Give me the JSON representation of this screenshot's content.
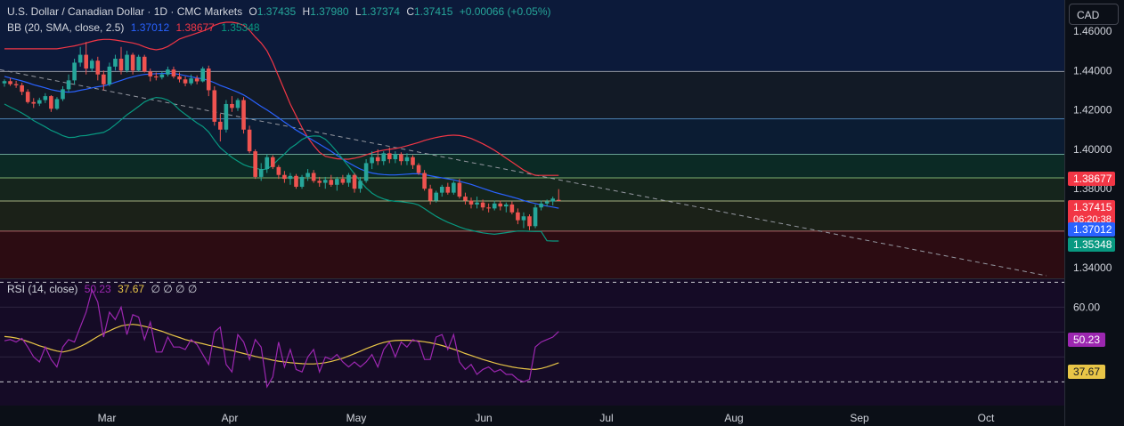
{
  "header": {
    "symbol": "U.S. Dollar / Canadian Dollar · 1D · CMC Markets",
    "open_label": "O",
    "open": "1.37435",
    "high_label": "H",
    "high": "1.37980",
    "low_label": "L",
    "low": "1.37374",
    "close_label": "C",
    "close": "1.37415",
    "change": "+0.00066 (+0.05%)"
  },
  "bb_legend": {
    "label": "BB (20, SMA, close, 2.5)",
    "basis": "1.37012",
    "upper": "1.38677",
    "lower": "1.35348"
  },
  "rsi_legend": {
    "label": "RSI (14, close)",
    "rsi": "50.23",
    "ma": "37.67",
    "extras": "∅ ∅ ∅ ∅"
  },
  "currency_button": "CAD",
  "colors": {
    "background": "#0b0f17",
    "up": "#26a69a",
    "down": "#ef5350",
    "basis": "#2962ff",
    "upper": "#f23645",
    "lower": "#089981",
    "rsi": "#9c27b0",
    "rsi_ma": "#e8c547"
  },
  "chart_data": [
    {
      "type": "candlestick",
      "title": "U.S. Dollar / Canadian Dollar · 1D · CMC Markets",
      "x_tick_labels": [
        "Mar",
        "Apr",
        "May",
        "Jun",
        "Jul",
        "Aug",
        "Sep",
        "Oct"
      ],
      "y_tick_labels": [
        "1.46000",
        "1.44000",
        "1.42000",
        "1.40000",
        "1.38000",
        "1.34000"
      ],
      "ylim": [
        1.3345,
        1.4758
      ],
      "horizontal_levels": [
        1.4395,
        1.4155,
        1.3975,
        1.3855,
        1.3738,
        1.3585
      ],
      "zones": [
        {
          "from": 1.4395,
          "to": 1.4758,
          "color": "#0c1a3a"
        },
        {
          "from": 1.4155,
          "to": 1.4395,
          "color": "#121a26"
        },
        {
          "from": 1.3975,
          "to": 1.4155,
          "color": "#0b1c33"
        },
        {
          "from": 1.3855,
          "to": 1.3975,
          "color": "#0b2a25"
        },
        {
          "from": 1.3738,
          "to": 1.3855,
          "color": "#15251c"
        },
        {
          "from": 1.3585,
          "to": 1.3738,
          "color": "#1b2118"
        },
        {
          "from": 1.3345,
          "to": 1.3585,
          "color": "#2c0c12"
        }
      ],
      "trendline": {
        "start": [
          1.433,
          1.4404
        ],
        "end": [
          1.3345,
          1.3345
        ]
      },
      "price_labels": [
        {
          "text": "1.38677",
          "value": 1.38677,
          "color": "#f23645"
        },
        {
          "text": "1.37415",
          "value": 1.37415,
          "color": "#f23645",
          "sub": "06:20:38"
        },
        {
          "text": "1.37012",
          "value": 1.37012,
          "color": "#2962ff"
        },
        {
          "text": "1.35348",
          "value": 1.35348,
          "color": "#089981"
        }
      ],
      "candles": [
        [
          1.4335,
          1.4355,
          1.4318,
          1.4346
        ],
        [
          1.4346,
          1.4362,
          1.4322,
          1.4331
        ],
        [
          1.4331,
          1.4348,
          1.4312,
          1.4325
        ],
        [
          1.4325,
          1.4338,
          1.4275,
          1.4292
        ],
        [
          1.4292,
          1.4305,
          1.4232,
          1.424
        ],
        [
          1.424,
          1.426,
          1.421,
          1.4232
        ],
        [
          1.4232,
          1.4262,
          1.422,
          1.425
        ],
        [
          1.425,
          1.4285,
          1.4235,
          1.427
        ],
        [
          1.427,
          1.4275,
          1.419,
          1.4206
        ],
        [
          1.4206,
          1.4265,
          1.42,
          1.4255
        ],
        [
          1.4255,
          1.432,
          1.4245,
          1.4305
        ],
        [
          1.4305,
          1.438,
          1.429,
          1.435
        ],
        [
          1.435,
          1.446,
          1.433,
          1.444
        ],
        [
          1.444,
          1.452,
          1.442,
          1.448
        ],
        [
          1.448,
          1.4545,
          1.438,
          1.441
        ],
        [
          1.441,
          1.446,
          1.4395,
          1.445
        ],
        [
          1.445,
          1.447,
          1.435,
          1.438
        ],
        [
          1.438,
          1.44,
          1.43,
          1.433
        ],
        [
          1.433,
          1.444,
          1.432,
          1.442
        ],
        [
          1.442,
          1.448,
          1.44,
          1.446
        ],
        [
          1.446,
          1.452,
          1.438,
          1.44
        ],
        [
          1.44,
          1.45,
          1.439,
          1.448
        ],
        [
          1.448,
          1.449,
          1.438,
          1.44
        ],
        [
          1.44,
          1.448,
          1.4395,
          1.447
        ],
        [
          1.447,
          1.448,
          1.439,
          1.4395
        ],
        [
          1.4395,
          1.441,
          1.4345,
          1.437
        ],
        [
          1.437,
          1.439,
          1.435,
          1.4365
        ],
        [
          1.4365,
          1.4395,
          1.4355,
          1.438
        ],
        [
          1.438,
          1.442,
          1.437,
          1.4405
        ],
        [
          1.4405,
          1.442,
          1.436,
          1.437
        ],
        [
          1.437,
          1.439,
          1.434,
          1.4355
        ],
        [
          1.4355,
          1.437,
          1.432,
          1.4335
        ],
        [
          1.4335,
          1.438,
          1.4325,
          1.436
        ],
        [
          1.436,
          1.4375,
          1.433,
          1.4345
        ],
        [
          1.4345,
          1.442,
          1.434,
          1.441
        ],
        [
          1.441,
          1.4425,
          1.427,
          1.43
        ],
        [
          1.43,
          1.432,
          1.412,
          1.414
        ],
        [
          1.414,
          1.418,
          1.404,
          1.41
        ],
        [
          1.41,
          1.425,
          1.4085,
          1.423
        ],
        [
          1.423,
          1.427,
          1.419,
          1.421
        ],
        [
          1.421,
          1.426,
          1.4195,
          1.425
        ],
        [
          1.425,
          1.4265,
          1.408,
          1.41
        ],
        [
          1.41,
          1.412,
          1.398,
          1.399
        ],
        [
          1.399,
          1.4,
          1.385,
          1.386
        ],
        [
          1.386,
          1.393,
          1.384,
          1.39
        ],
        [
          1.39,
          1.3975,
          1.388,
          1.396
        ],
        [
          1.396,
          1.397,
          1.39,
          1.391
        ],
        [
          1.391,
          1.392,
          1.385,
          1.387
        ],
        [
          1.387,
          1.389,
          1.383,
          1.385
        ],
        [
          1.385,
          1.388,
          1.382,
          1.3865
        ],
        [
          1.3865,
          1.3875,
          1.38,
          1.381
        ],
        [
          1.381,
          1.387,
          1.38,
          1.386
        ],
        [
          1.386,
          1.39,
          1.384,
          1.388
        ],
        [
          1.388,
          1.3895,
          1.383,
          1.384
        ],
        [
          1.384,
          1.386,
          1.381,
          1.383
        ],
        [
          1.383,
          1.386,
          1.38,
          1.3845
        ],
        [
          1.3845,
          1.387,
          1.381,
          1.382
        ],
        [
          1.382,
          1.386,
          1.379,
          1.385
        ],
        [
          1.385,
          1.387,
          1.382,
          1.383
        ],
        [
          1.383,
          1.388,
          1.381,
          1.387
        ],
        [
          1.387,
          1.388,
          1.378,
          1.38
        ],
        [
          1.38,
          1.386,
          1.378,
          1.384
        ],
        [
          1.384,
          1.395,
          1.383,
          1.393
        ],
        [
          1.393,
          1.399,
          1.39,
          1.396
        ],
        [
          1.396,
          1.4,
          1.392,
          1.394
        ],
        [
          1.394,
          1.399,
          1.392,
          1.398
        ],
        [
          1.398,
          1.401,
          1.393,
          1.395
        ],
        [
          1.395,
          1.399,
          1.393,
          1.3975
        ],
        [
          1.3975,
          1.3985,
          1.392,
          1.394
        ],
        [
          1.394,
          1.398,
          1.392,
          1.396
        ],
        [
          1.396,
          1.397,
          1.39,
          1.392
        ],
        [
          1.392,
          1.393,
          1.387,
          1.388
        ],
        [
          1.388,
          1.3895,
          1.379,
          1.38
        ],
        [
          1.38,
          1.382,
          1.372,
          1.374
        ],
        [
          1.374,
          1.379,
          1.373,
          1.378
        ],
        [
          1.378,
          1.382,
          1.376,
          1.381
        ],
        [
          1.381,
          1.383,
          1.377,
          1.378
        ],
        [
          1.378,
          1.384,
          1.377,
          1.383
        ],
        [
          1.383,
          1.385,
          1.375,
          1.376
        ],
        [
          1.376,
          1.378,
          1.372,
          1.374
        ],
        [
          1.374,
          1.3755,
          1.37,
          1.372
        ],
        [
          1.372,
          1.376,
          1.37,
          1.373
        ],
        [
          1.373,
          1.3745,
          1.369,
          1.3705
        ],
        [
          1.3705,
          1.3725,
          1.368,
          1.37
        ],
        [
          1.37,
          1.374,
          1.369,
          1.3725
        ],
        [
          1.3725,
          1.374,
          1.369,
          1.371
        ],
        [
          1.371,
          1.373,
          1.368,
          1.372
        ],
        [
          1.372,
          1.3735,
          1.367,
          1.368
        ],
        [
          1.368,
          1.37,
          1.362,
          1.364
        ],
        [
          1.364,
          1.368,
          1.36,
          1.366
        ],
        [
          1.366,
          1.367,
          1.359,
          1.361
        ],
        [
          1.361,
          1.372,
          1.36,
          1.3705
        ],
        [
          1.3705,
          1.374,
          1.369,
          1.3725
        ],
        [
          1.3725,
          1.3745,
          1.371,
          1.3735
        ],
        [
          1.3735,
          1.376,
          1.3715,
          1.375
        ],
        [
          1.37435,
          1.3798,
          1.37374,
          1.37415
        ]
      ],
      "bb_basis": [
        1.437,
        1.4362,
        1.4355,
        1.4347,
        1.4338,
        1.4328,
        1.432,
        1.4312,
        1.4303,
        1.4297,
        1.4292,
        1.429,
        1.4293,
        1.43,
        1.4305,
        1.4312,
        1.4318,
        1.4322,
        1.433,
        1.434,
        1.435,
        1.436,
        1.4368,
        1.4375,
        1.438,
        1.4382,
        1.4384,
        1.4385,
        1.4386,
        1.4385,
        1.438,
        1.4374,
        1.4368,
        1.4362,
        1.4358,
        1.435,
        1.4338,
        1.4324,
        1.4314,
        1.4302,
        1.429,
        1.4276,
        1.4258,
        1.4238,
        1.4218,
        1.42,
        1.418,
        1.416,
        1.4138,
        1.4118,
        1.4098,
        1.408,
        1.4062,
        1.4044,
        1.4026,
        1.4008,
        1.399,
        1.397,
        1.395,
        1.3932,
        1.3915,
        1.39,
        1.3888,
        1.388,
        1.3875,
        1.3872,
        1.387,
        1.387,
        1.3872,
        1.3874,
        1.3876,
        1.3876,
        1.3872,
        1.3866,
        1.386,
        1.3855,
        1.385,
        1.3845,
        1.3838,
        1.383,
        1.3822,
        1.3812,
        1.3802,
        1.3792,
        1.3782,
        1.3774,
        1.3766,
        1.3758,
        1.375,
        1.374,
        1.3732,
        1.3725,
        1.3718,
        1.3712,
        1.3707,
        1.37012
      ],
      "bb_upper": [
        1.451,
        1.451,
        1.451,
        1.451,
        1.451,
        1.451,
        1.451,
        1.451,
        1.451,
        1.451,
        1.4515,
        1.452,
        1.4525,
        1.4532,
        1.454,
        1.4548,
        1.4555,
        1.4558,
        1.4558,
        1.4555,
        1.455,
        1.4545,
        1.454,
        1.4532,
        1.452,
        1.451,
        1.4505,
        1.451,
        1.4522,
        1.454,
        1.456,
        1.457,
        1.458,
        1.459,
        1.46,
        1.4612,
        1.463,
        1.464,
        1.4645,
        1.4645,
        1.464,
        1.463,
        1.4605,
        1.457,
        1.454,
        1.45,
        1.444,
        1.437,
        1.43,
        1.423,
        1.417,
        1.411,
        1.406,
        1.402,
        1.3985,
        1.3965,
        1.3958,
        1.3952,
        1.395,
        1.395,
        1.3955,
        1.3962,
        1.3972,
        1.3982,
        1.399,
        1.3996,
        1.4,
        1.4004,
        1.401,
        1.4018,
        1.4026,
        1.4035,
        1.4045,
        1.4053,
        1.406,
        1.4066,
        1.407,
        1.4072,
        1.407,
        1.4064,
        1.4055,
        1.4042,
        1.4028,
        1.4012,
        1.3995,
        1.3975,
        1.3955,
        1.3935,
        1.3915,
        1.3895,
        1.388,
        1.38677,
        1.38677,
        1.38677,
        1.38677,
        1.38677
      ],
      "bb_lower": [
        1.423,
        1.4214,
        1.42,
        1.4184,
        1.4166,
        1.4146,
        1.413,
        1.4114,
        1.4096,
        1.4084,
        1.4069,
        1.406,
        1.4061,
        1.4068,
        1.407,
        1.4076,
        1.4081,
        1.4086,
        1.4102,
        1.4125,
        1.415,
        1.4175,
        1.4196,
        1.4218,
        1.424,
        1.4254,
        1.4263,
        1.426,
        1.425,
        1.423,
        1.42,
        1.4178,
        1.4156,
        1.4134,
        1.4116,
        1.4088,
        1.4046,
        1.4008,
        1.3983,
        1.3959,
        1.394,
        1.3922,
        1.3911,
        1.3906,
        1.3896,
        1.39,
        1.392,
        1.395,
        1.3976,
        1.4006,
        1.4026,
        1.405,
        1.4064,
        1.4068,
        1.4067,
        1.4051,
        1.4022,
        1.3988,
        1.395,
        1.3914,
        1.3875,
        1.3838,
        1.3804,
        1.3778,
        1.376,
        1.3748,
        1.374,
        1.3736,
        1.3734,
        1.373,
        1.3726,
        1.3717,
        1.3699,
        1.3679,
        1.366,
        1.3644,
        1.363,
        1.3618,
        1.3606,
        1.3596,
        1.3589,
        1.3582,
        1.3576,
        1.3572,
        1.3569,
        1.3573,
        1.3577,
        1.3581,
        1.3585,
        1.3585,
        1.3584,
        1.3583,
        1.3583,
        1.3536,
        1.35348,
        1.35348
      ]
    },
    {
      "type": "line",
      "title": "RSI (14, close)",
      "y_tick_labels": [
        "60.00"
      ],
      "ylim": [
        20.5,
        71.2
      ],
      "bands": [
        70,
        30
      ],
      "price_labels": [
        {
          "text": "50.23",
          "value": 50.23,
          "color": "#9c27b0"
        },
        {
          "text": "37.67",
          "value": 37.67,
          "color": "#e8c547"
        }
      ],
      "series": [
        {
          "values": [
            46.5,
            47.0,
            46.0,
            47.5,
            44.0,
            40.0,
            38.0,
            44.0,
            39.0,
            36.0,
            44.0,
            47.0,
            46.0,
            52.0,
            58.0,
            67.0,
            62.0,
            48.0,
            58.0,
            55.0,
            60.0,
            49.0,
            57.0,
            56.0,
            47.0,
            54.0,
            42.0,
            42.0,
            48.0,
            44.0,
            44.0,
            43.0,
            47.0,
            45.0,
            41.0,
            37.0,
            50.0,
            52.0,
            37.0,
            34.0,
            49.0,
            46.0,
            39.0,
            47.0,
            44.0,
            28.0,
            32.0,
            46.0,
            36.0,
            43.0,
            35.0,
            34.0,
            40.0,
            43.0,
            34.0,
            40.0,
            39.0,
            41.0,
            38.0,
            36.0,
            38.0,
            36.0,
            38.0,
            41.0,
            36.0,
            43.0,
            46.0,
            40.0,
            46.0,
            44.0,
            47.0,
            46.0,
            39.0,
            39.0,
            48.0,
            49.0,
            43.0,
            49.0,
            38.0,
            35.0,
            37.0,
            33.0,
            35.0,
            36.0,
            34.0,
            35.0,
            33.0,
            33.0,
            31.0,
            30.0,
            31.0,
            44.0,
            46.0,
            47.0,
            48.0,
            50.23
          ]
        },
        {
          "values": [
            48.2,
            48.0,
            47.6,
            47.0,
            46.2,
            45.4,
            44.5,
            43.8,
            43.0,
            42.4,
            42.0,
            42.5,
            43.2,
            44.2,
            45.4,
            46.8,
            48.2,
            49.5,
            50.5,
            51.6,
            52.5,
            52.9,
            53.1,
            52.8,
            52.3,
            51.7,
            51.0,
            50.3,
            49.4,
            48.6,
            47.8,
            47.0,
            46.4,
            45.8,
            45.3,
            44.7,
            44.2,
            43.7,
            43.1,
            42.6,
            42.0,
            41.4,
            40.8,
            40.2,
            39.7,
            39.2,
            38.7,
            38.3,
            38.0,
            37.7,
            37.5,
            37.3,
            37.2,
            37.2,
            37.4,
            37.7,
            38.2,
            38.8,
            39.5,
            40.4,
            41.3,
            42.3,
            43.3,
            44.2,
            45.1,
            45.8,
            46.3,
            46.6,
            46.7,
            46.7,
            46.6,
            46.4,
            46.1,
            45.7,
            45.2,
            44.6,
            43.9,
            43.1,
            42.3,
            41.4,
            40.6,
            39.8,
            39.0,
            38.3,
            37.6,
            37.0,
            36.5,
            36.0,
            35.6,
            35.3,
            35.1,
            35.0,
            35.4,
            36.0,
            36.8,
            37.67
          ]
        }
      ]
    }
  ]
}
